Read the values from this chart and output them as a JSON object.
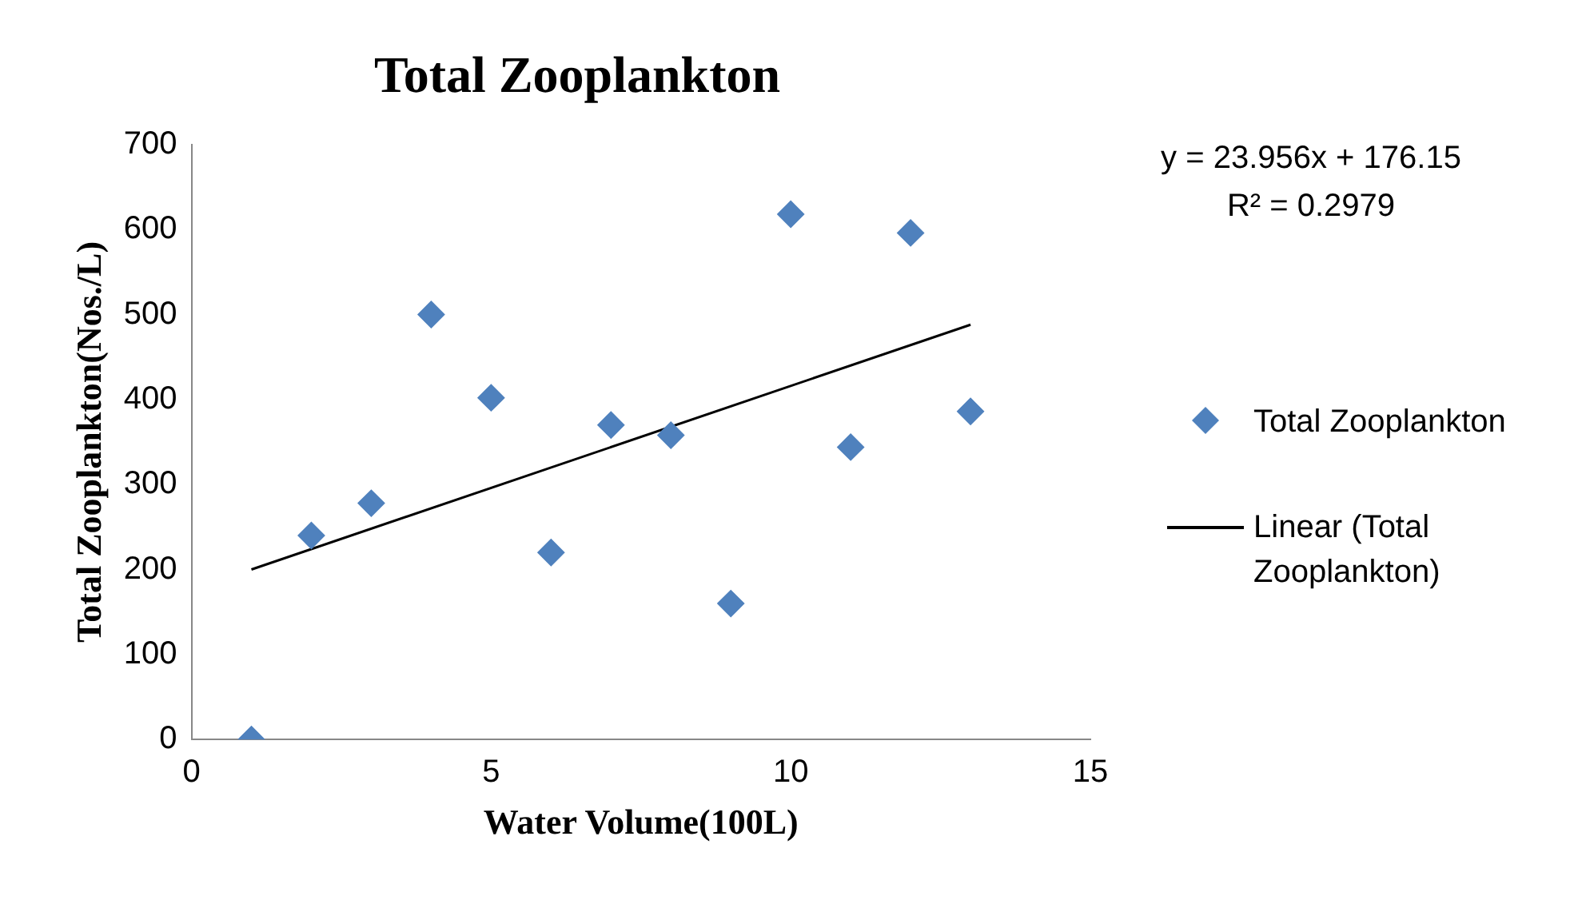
{
  "chart_data": {
    "type": "scatter",
    "title": "Total Zooplankton",
    "xlabel": "Water Volume(100L)",
    "ylabel": "Total Zooplankton(Nos./L)",
    "xlim": [
      0,
      15
    ],
    "xticks": [
      0,
      5,
      10,
      15
    ],
    "ylim": [
      0,
      700
    ],
    "yticks": [
      0,
      100,
      200,
      300,
      400,
      500,
      600,
      700
    ],
    "grid": false,
    "legend": "right",
    "marker": "diamond",
    "annotations": [
      "y = 23.956x + 176.15",
      "R² = 0.2979"
    ],
    "series": [
      {
        "name": "Total Zooplankton",
        "color": "#4f81bd",
        "x": [
          1,
          2,
          3,
          4,
          5,
          6,
          7,
          8,
          9,
          10,
          11,
          12,
          13
        ],
        "values": [
          0,
          240,
          278,
          500,
          402,
          220,
          370,
          358,
          160,
          618,
          344,
          596,
          386
        ]
      },
      {
        "name": "Linear (Total Zooplankton)",
        "type": "line",
        "color": "#000000",
        "marker": "none",
        "line_style": "solid",
        "x": [
          1,
          13
        ],
        "values": [
          200,
          488
        ]
      }
    ]
  }
}
